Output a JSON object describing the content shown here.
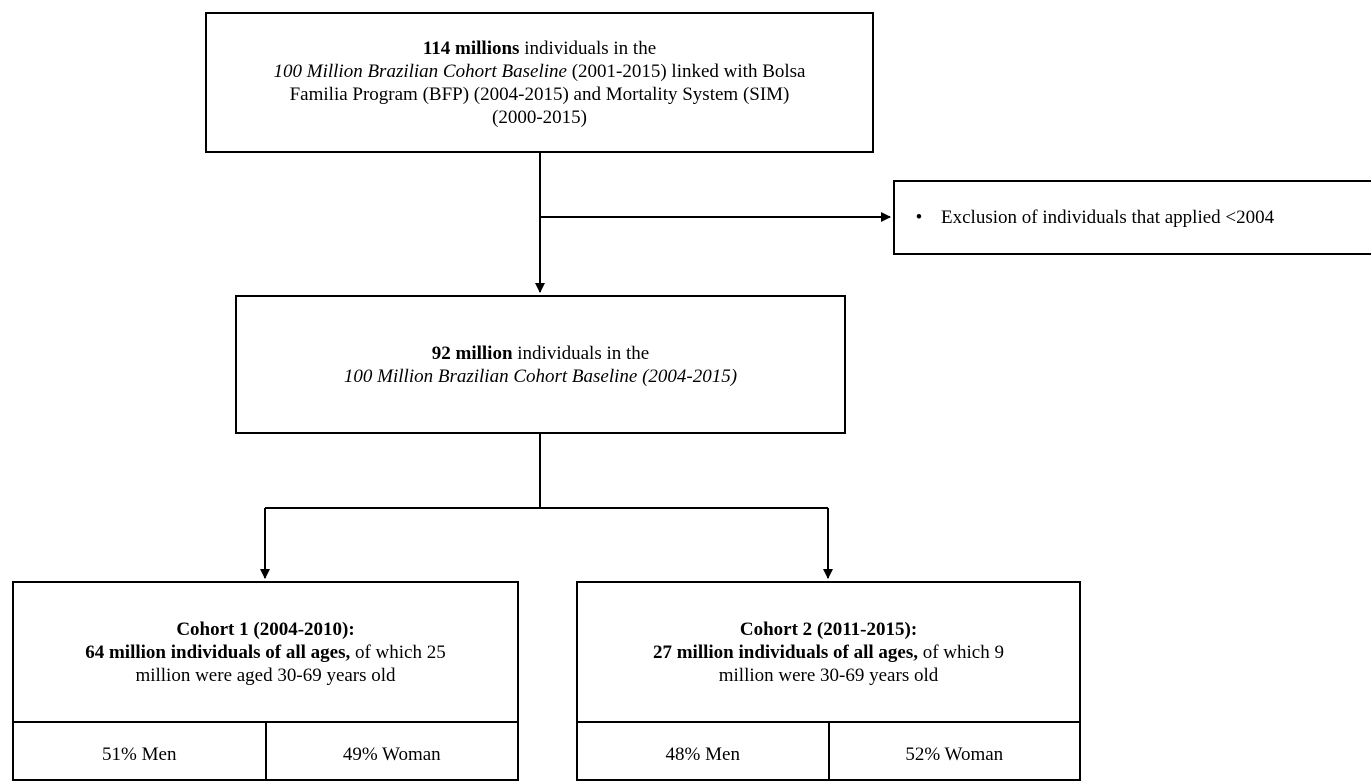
{
  "top_box": {
    "bold": "114 millions",
    "line1_rest": " individuals in the",
    "italic": "100 Million Brazilian Cohort Baseline",
    "line2_rest": " (2001-2015) linked with Bolsa",
    "line3": "Familia Program (BFP) (2004-2015) and Mortality System (SIM)",
    "line4": "(2000-2015)"
  },
  "exclusion_box": {
    "bullet": "•",
    "text": "Exclusion of individuals that applied <2004"
  },
  "middle_box": {
    "bold": "92 million",
    "line1_rest": " individuals in the",
    "italic": "100 Million Brazilian Cohort Baseline (2004-2015)"
  },
  "cohort1": {
    "title": "Cohort 1 (2004-2010):",
    "bold": "64  million individuals of all ages,",
    "rest": " of which 25",
    "line3": "million were aged 30-69 years old",
    "men": "51% Men",
    "women": "49% Woman"
  },
  "cohort2": {
    "title": "Cohort 2 (2011-2015):",
    "bold": "27 million individuals of all ages,",
    "rest": " of which 9",
    "line3": "million were 30-69 years old",
    "men": "48% Men",
    "women": "52% Woman"
  },
  "colors": {
    "stroke": "#000000",
    "background": "#ffffff"
  }
}
